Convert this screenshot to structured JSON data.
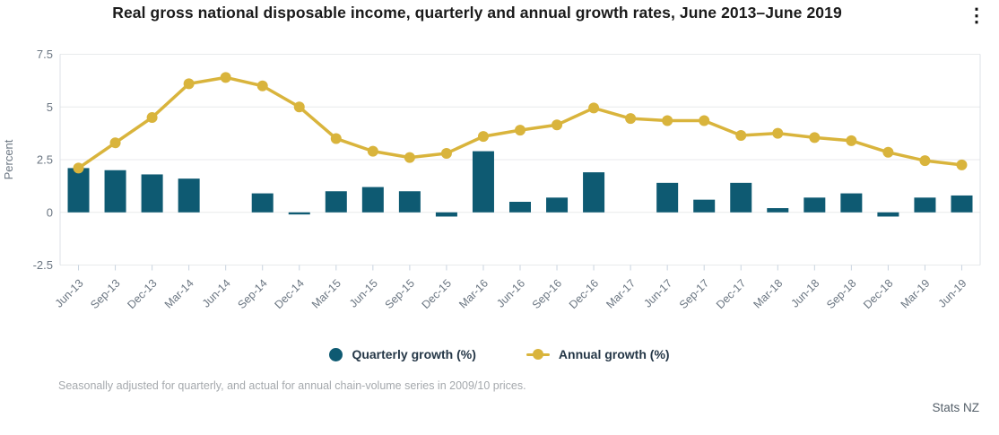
{
  "header": {
    "title": "Real gross national disposable income, quarterly and annual growth rates, June 2013–June 2019",
    "menu_icon_glyph": "⋮"
  },
  "chart_data": {
    "type": "bar",
    "subtype": "bar+line combo",
    "title": "Real gross national disposable income, quarterly and annual growth rates, June 2013–June 2019",
    "xlabel": "",
    "ylabel": "Percent",
    "ylim": [
      -2.5,
      7.5
    ],
    "yticks": [
      7.5,
      5,
      2.5,
      0,
      -2.5
    ],
    "ytick_labels": [
      "7.5",
      "5",
      "2.5",
      "0",
      "-2.5"
    ],
    "grid": true,
    "legend_position": "bottom",
    "categories": [
      "Jun-13",
      "Sep-13",
      "Dec-13",
      "Mar-14",
      "Jun-14",
      "Sep-14",
      "Dec-14",
      "Mar-15",
      "Jun-15",
      "Sep-15",
      "Dec-15",
      "Mar-16",
      "Jun-16",
      "Sep-16",
      "Dec-16",
      "Mar-17",
      "Jun-17",
      "Sep-17",
      "Dec-17",
      "Mar-18",
      "Jun-18",
      "Sep-18",
      "Dec-18",
      "Mar-19",
      "Jun-19"
    ],
    "series": [
      {
        "name": "Quarterly growth (%)",
        "type": "bar",
        "color": "#0e5a72",
        "values": [
          2.1,
          2.0,
          1.8,
          1.6,
          0.0,
          0.9,
          -0.1,
          1.0,
          1.2,
          1.0,
          -0.2,
          2.9,
          0.5,
          0.7,
          1.9,
          0.0,
          1.4,
          0.6,
          1.4,
          0.2,
          0.7,
          0.9,
          -0.2,
          0.7,
          0.8
        ]
      },
      {
        "name": "Annual growth (%)",
        "type": "line",
        "color": "#d9b43c",
        "values": [
          2.1,
          3.3,
          4.5,
          6.1,
          6.4,
          6.0,
          5.0,
          3.5,
          2.9,
          2.6,
          2.8,
          3.6,
          3.9,
          4.15,
          4.95,
          4.45,
          4.35,
          4.35,
          3.65,
          3.75,
          3.55,
          3.4,
          2.85,
          2.45,
          2.25
        ]
      }
    ],
    "colors": {
      "gridline": "#e8eaec",
      "plot_border": "#dce1e7",
      "tick_mark": "#c8d3df",
      "axis_text": "#6b7682"
    }
  },
  "legend": {
    "items": [
      {
        "label": "Quarterly growth (%)"
      },
      {
        "label": "Annual growth (%)"
      }
    ]
  },
  "footnote": "Seasonally adjusted for quarterly, and actual for annual chain-volume series in 2009/10 prices.",
  "source": "Stats NZ"
}
